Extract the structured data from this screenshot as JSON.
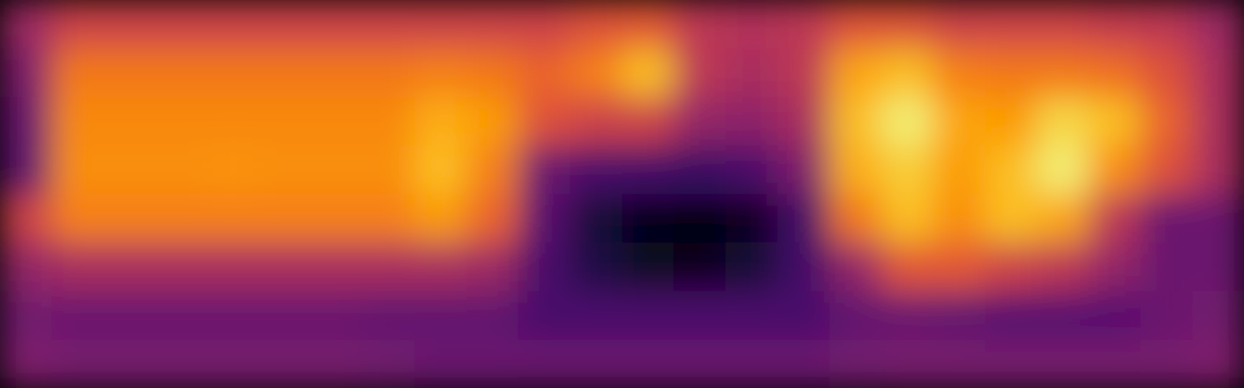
{
  "chart_data": {
    "type": "heatmap",
    "color": "inferno",
    "tick_labels": false,
    "zlim": [
      0,
      1
    ],
    "cells": [
      [
        0.42,
        0.55,
        0.55,
        0.55,
        0.55,
        0.55,
        0.55,
        0.55,
        0.55,
        0.55,
        0.55,
        0.6,
        0.62,
        0.5,
        0.48,
        0.5,
        0.6,
        0.6,
        0.55,
        0.55,
        0.55,
        0.52,
        0.5,
        0.42
      ],
      [
        0.35,
        0.7,
        0.7,
        0.7,
        0.7,
        0.7,
        0.7,
        0.7,
        0.72,
        0.7,
        0.65,
        0.72,
        0.85,
        0.5,
        0.45,
        0.5,
        0.8,
        0.85,
        0.72,
        0.7,
        0.7,
        0.68,
        0.6,
        0.45
      ],
      [
        0.3,
        0.74,
        0.74,
        0.74,
        0.74,
        0.74,
        0.74,
        0.74,
        0.82,
        0.78,
        0.6,
        0.55,
        0.55,
        0.4,
        0.38,
        0.45,
        0.85,
        0.95,
        0.8,
        0.78,
        0.9,
        0.85,
        0.65,
        0.45
      ],
      [
        0.28,
        0.75,
        0.75,
        0.75,
        0.76,
        0.75,
        0.75,
        0.75,
        0.85,
        0.72,
        0.3,
        0.22,
        0.2,
        0.18,
        0.22,
        0.35,
        0.82,
        0.88,
        0.78,
        0.85,
        0.95,
        0.75,
        0.6,
        0.45
      ],
      [
        0.55,
        0.72,
        0.72,
        0.72,
        0.72,
        0.72,
        0.72,
        0.72,
        0.78,
        0.65,
        0.25,
        0.1,
        0.04,
        0.02,
        0.05,
        0.2,
        0.7,
        0.85,
        0.75,
        0.85,
        0.8,
        0.5,
        0.3,
        0.3
      ],
      [
        0.4,
        0.45,
        0.45,
        0.45,
        0.45,
        0.45,
        0.45,
        0.45,
        0.45,
        0.42,
        0.22,
        0.12,
        0.06,
        0.05,
        0.1,
        0.2,
        0.4,
        0.62,
        0.62,
        0.55,
        0.5,
        0.4,
        0.3,
        0.3
      ],
      [
        0.32,
        0.3,
        0.3,
        0.3,
        0.3,
        0.3,
        0.3,
        0.28,
        0.28,
        0.28,
        0.22,
        0.22,
        0.22,
        0.22,
        0.22,
        0.22,
        0.28,
        0.3,
        0.28,
        0.25,
        0.25,
        0.25,
        0.3,
        0.32
      ],
      [
        0.35,
        0.33,
        0.33,
        0.33,
        0.33,
        0.33,
        0.33,
        0.32,
        0.3,
        0.3,
        0.3,
        0.3,
        0.3,
        0.3,
        0.3,
        0.3,
        0.32,
        0.33,
        0.33,
        0.33,
        0.33,
        0.33,
        0.33,
        0.35
      ]
    ]
  }
}
